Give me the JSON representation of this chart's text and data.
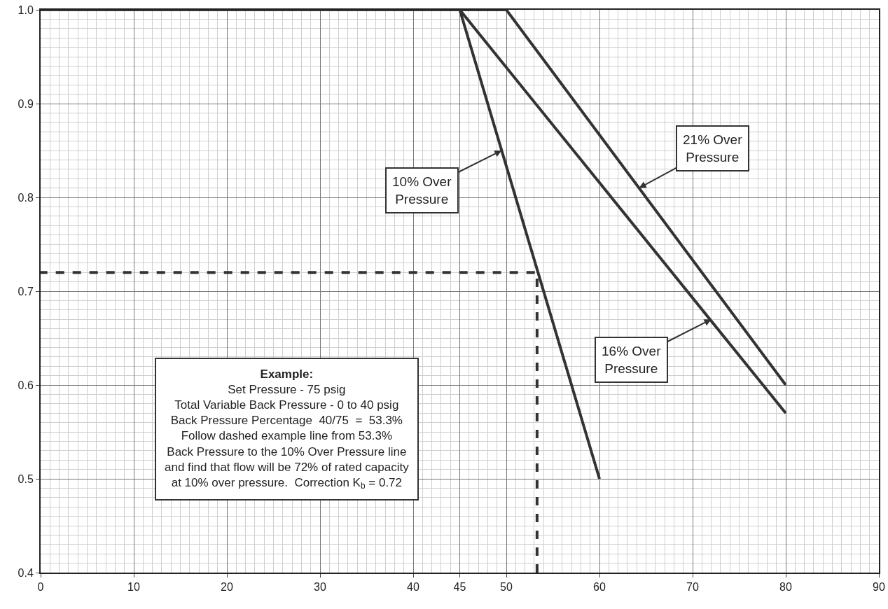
{
  "chart_data": {
    "type": "line",
    "series": [
      {
        "color": "#333333",
        "x": [
          0,
          45,
          60
        ],
        "values": [
          1.0,
          1.0,
          0.5
        ]
      },
      {
        "color": "#333333",
        "x": [
          45,
          80
        ],
        "values": [
          1.0,
          0.57
        ]
      },
      {
        "color": "#333333",
        "x": [
          45,
          50,
          80
        ],
        "values": [
          1.0,
          1.0,
          0.6
        ]
      },
      {
        "color": "#333333",
        "x": [
          53.3,
          53.3,
          0
        ],
        "values": [
          0.4,
          0.72,
          0.72
        ],
        "line_style": "dashed"
      }
    ],
    "xlim": [
      0,
      90
    ],
    "xticks": [
      0,
      10,
      20,
      30,
      40,
      45,
      50,
      60,
      70,
      80,
      90
    ],
    "ylim": [
      0.4,
      1.0
    ],
    "yticks": [
      {
        "value": 0.4,
        "label": "0.4"
      },
      {
        "value": 0.5,
        "label": "0.5"
      },
      {
        "value": 0.6,
        "label": "0.6"
      },
      {
        "value": 0.7,
        "label": "0.7"
      },
      {
        "value": 0.8,
        "label": "0.8"
      },
      {
        "value": 0.9,
        "label": "0.9"
      },
      {
        "value": 1.0,
        "label": "1.0"
      }
    ],
    "grid": true,
    "marker": "none",
    "line_style": "solid",
    "annotations": [
      {
        "text": "10% Over\nPressure",
        "x": 49.5,
        "y": 0.85
      },
      {
        "text": "21% Over\nPressure",
        "x": 64.25,
        "y": 0.81
      },
      {
        "text": "16% Over\nPressure",
        "x": 72,
        "y": 0.67
      },
      "Example:\nSet Pressure - 75 psig\nTotal Variable Back Pressure - 0 to 40 psig\nBack Pressure Percentage  40/75  =  53.3%\nFollow dashed example line from 53.3%\nBack Pressure to the 10% Over Pressure line\nand find that flow will be 72% of rated capacity\nat 10% over pressure.  Correction K$_{b}$ = 0.72"
    ]
  }
}
